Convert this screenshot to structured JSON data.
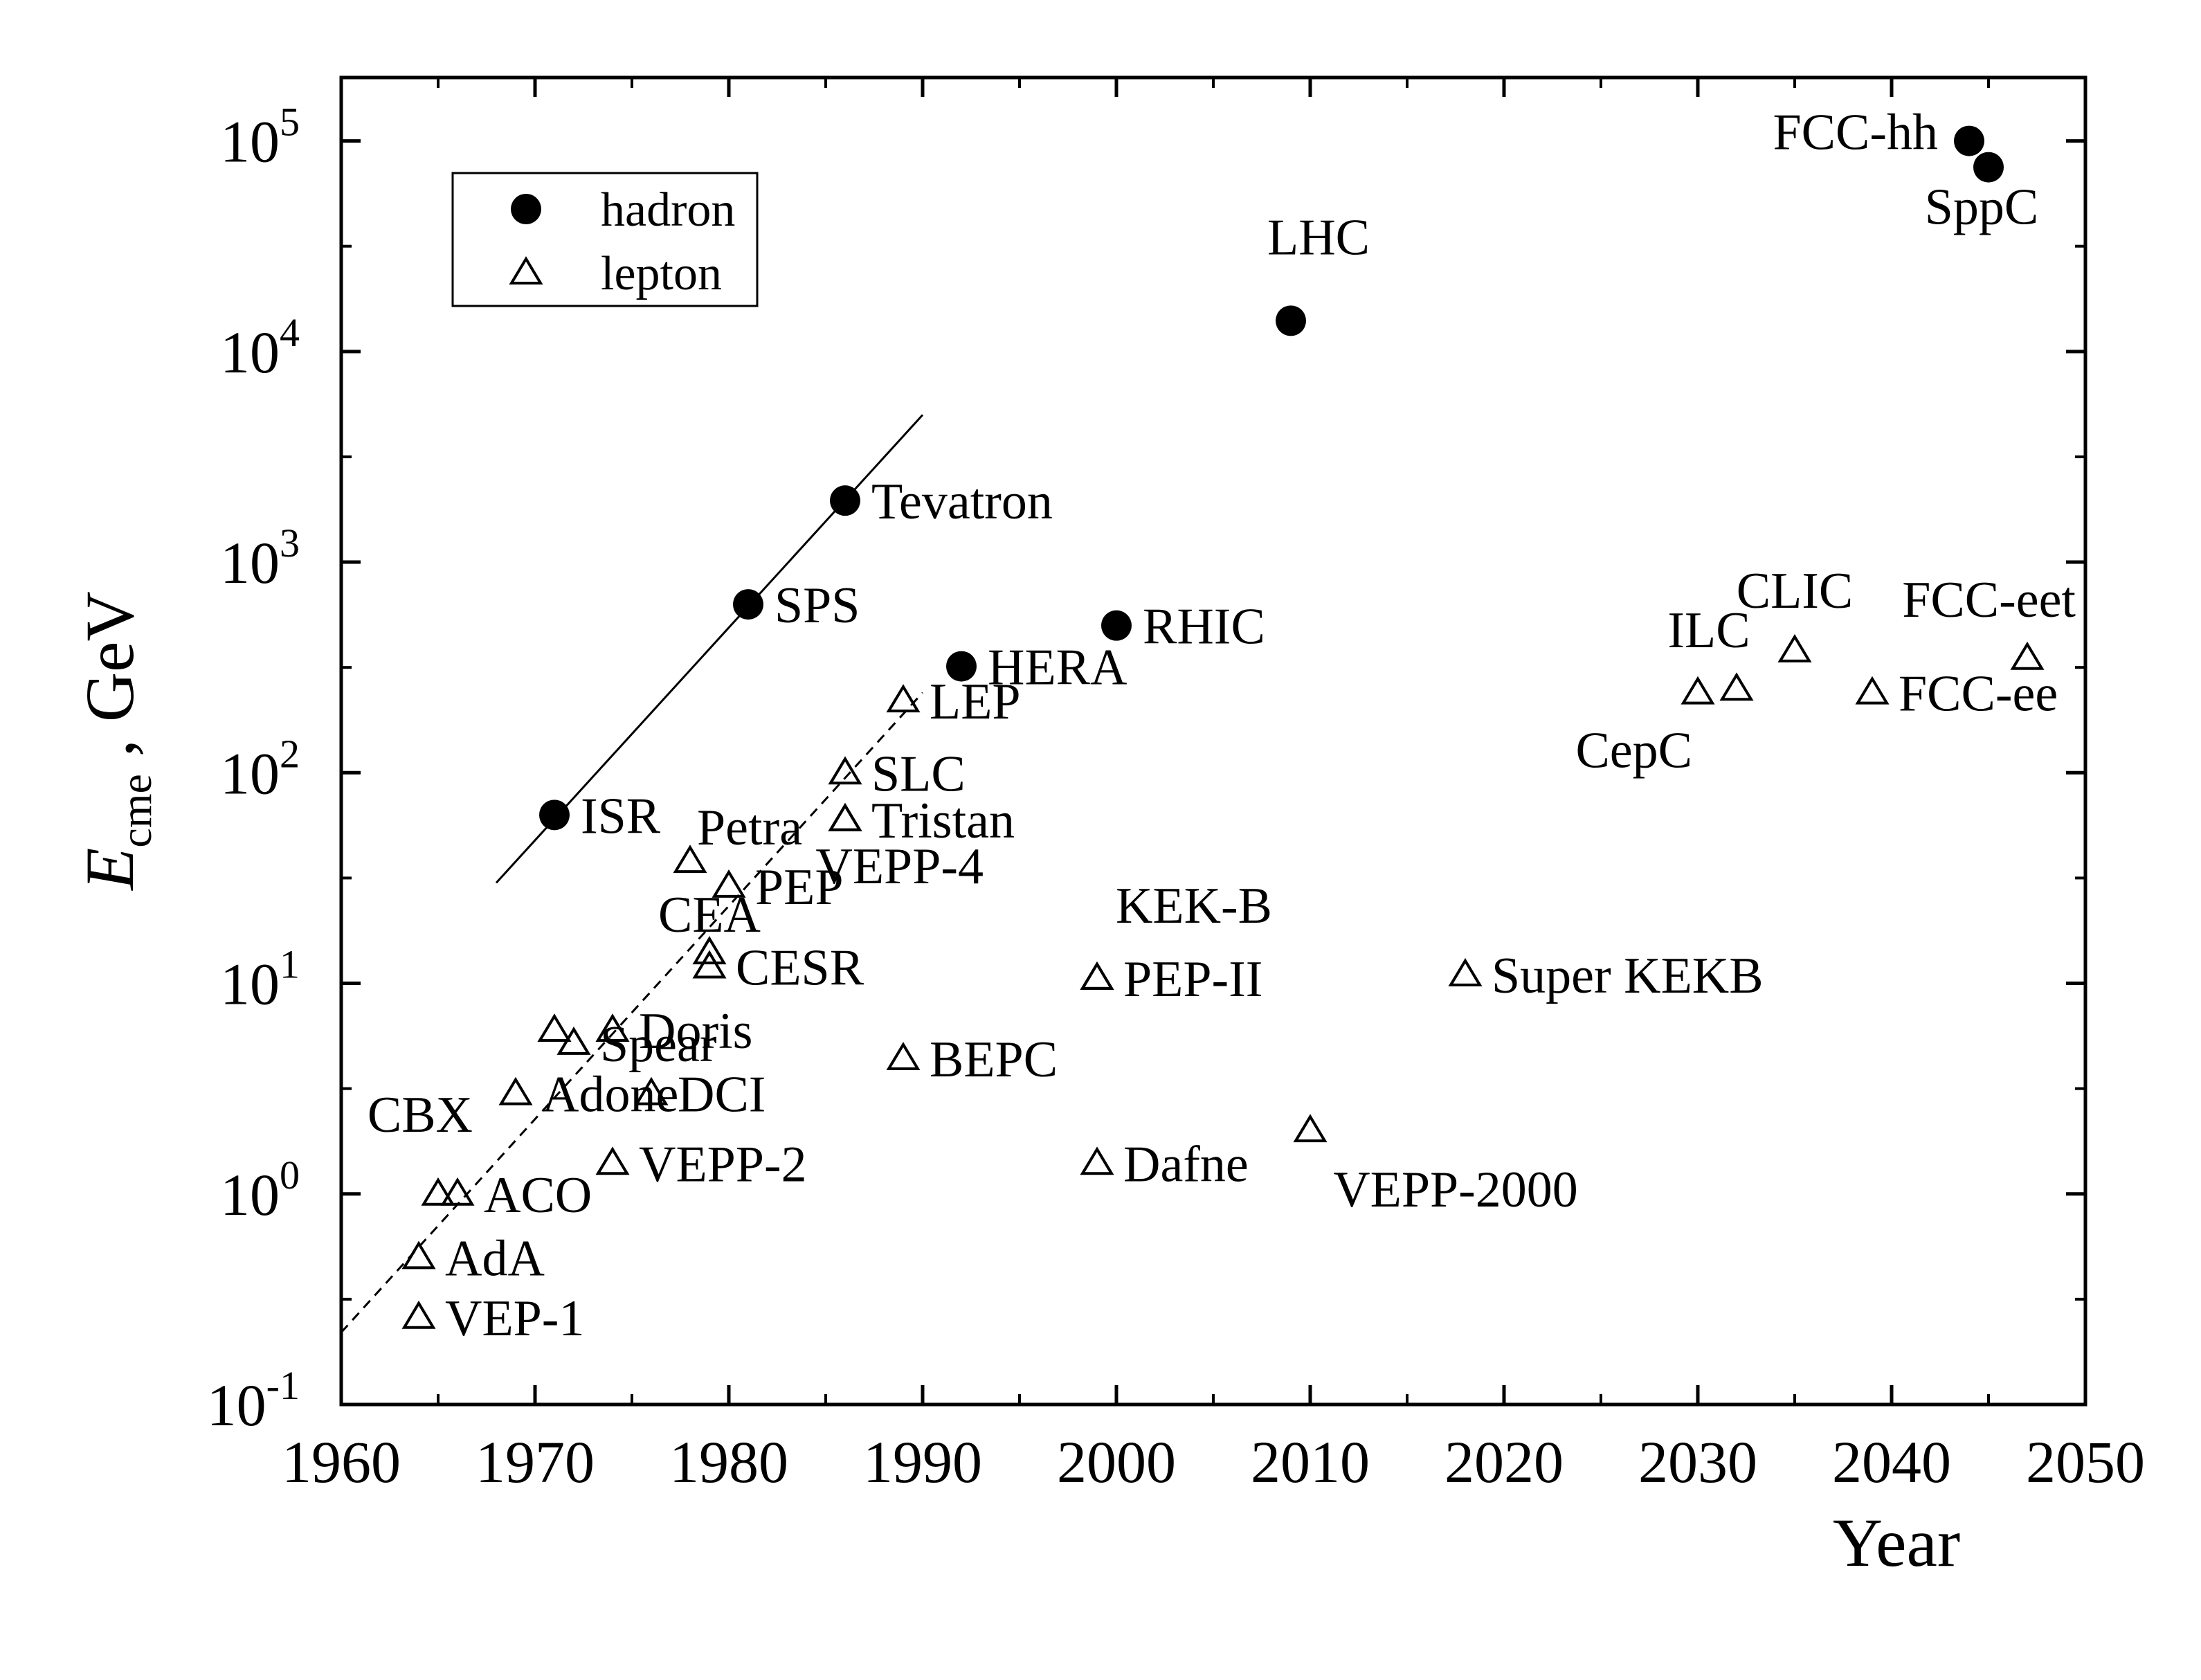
{
  "chart_data": {
    "type": "scatter",
    "x_scale": "linear",
    "y_scale": "log",
    "xlim": [
      1960,
      2050
    ],
    "ylim": [
      0.1,
      200000
    ],
    "x_ticks": [
      {
        "value": 1960,
        "label": "1960"
      },
      {
        "value": 1970,
        "label": "1970"
      },
      {
        "value": 1980,
        "label": "1980"
      },
      {
        "value": 1990,
        "label": "1990"
      },
      {
        "value": 2000,
        "label": "2000"
      },
      {
        "value": 2010,
        "label": "2010"
      },
      {
        "value": 2020,
        "label": "2020"
      },
      {
        "value": 2030,
        "label": "2030"
      },
      {
        "value": 2040,
        "label": "2040"
      },
      {
        "value": 2050,
        "label": "2050"
      }
    ],
    "y_ticks": [
      {
        "value": 0.1,
        "base": "10",
        "exp": "-1"
      },
      {
        "value": 1,
        "base": "10",
        "exp": "0"
      },
      {
        "value": 10,
        "base": "10",
        "exp": "1"
      },
      {
        "value": 100,
        "base": "10",
        "exp": "2"
      },
      {
        "value": 1000,
        "base": "10",
        "exp": "3"
      },
      {
        "value": 10000,
        "base": "10",
        "exp": "4"
      },
      {
        "value": 100000,
        "base": "10",
        "exp": "5"
      }
    ],
    "xlabel": "Year",
    "ylabel": {
      "main": "E",
      "sub": "cme",
      "unit": " , GeV"
    },
    "legend": {
      "position": "top-left",
      "entries": [
        {
          "marker": "filled-circle",
          "label": "hadron"
        },
        {
          "marker": "open-triangle",
          "label": "lepton"
        }
      ]
    },
    "series": [
      {
        "name": "hadron",
        "marker": "filled-circle",
        "points": [
          {
            "label": "ISR",
            "x": 1971,
            "y": 63,
            "anchor": "right"
          },
          {
            "label": "SPS",
            "x": 1981,
            "y": 630,
            "anchor": "right"
          },
          {
            "label": "Tevatron",
            "x": 1986,
            "y": 1960,
            "anchor": "right"
          },
          {
            "label": "HERA",
            "x": 1992,
            "y": 320,
            "anchor": "right"
          },
          {
            "label": "RHIC",
            "x": 2000,
            "y": 500,
            "anchor": "right"
          },
          {
            "label": "LHC",
            "x": 2009,
            "y": 14000,
            "anchor": "above"
          },
          {
            "label": "FCC-hh",
            "x": 2044,
            "y": 100000,
            "anchor": "left"
          },
          {
            "label": "SppC",
            "x": 2045,
            "y": 75000,
            "anchor": "below"
          }
        ]
      },
      {
        "name": "lepton",
        "marker": "open-triangle",
        "points": [
          {
            "label": "VEP-1",
            "x": 1964,
            "y": 0.26,
            "anchor": "right"
          },
          {
            "label": "AdA",
            "x": 1964,
            "y": 0.5,
            "anchor": "right"
          },
          {
            "label": "CBX",
            "x": 1965,
            "y": 1.0,
            "anchor": "above-left"
          },
          {
            "label": "ACO",
            "x": 1966,
            "y": 1.0,
            "anchor": "right"
          },
          {
            "label": "Adone",
            "x": 1969,
            "y": 3.0,
            "anchor": "right"
          },
          {
            "label": "Spear",
            "x": 1972,
            "y": 5.2,
            "anchor": "right"
          },
          {
            "label": "",
            "x": 1971,
            "y": 6.0,
            "anchor": "none"
          },
          {
            "label": "Doris",
            "x": 1974,
            "y": 6.0,
            "anchor": "right"
          },
          {
            "label": "DCI",
            "x": 1976,
            "y": 3.0,
            "anchor": "right"
          },
          {
            "label": "VEPP-2",
            "x": 1974,
            "y": 1.4,
            "anchor": "right"
          },
          {
            "label": "CEA",
            "x": 1979,
            "y": 14,
            "anchor": "above"
          },
          {
            "label": "CESR",
            "x": 1979,
            "y": 12,
            "anchor": "right"
          },
          {
            "label": "Petra",
            "x": 1978,
            "y": 38,
            "anchor": "above-right"
          },
          {
            "label": "PEP",
            "x": 1980,
            "y": 29,
            "anchor": "right"
          },
          {
            "label": "VEPP-4",
            "x": 1986,
            "y": 60,
            "anchor": "below-left"
          },
          {
            "label": "Tristan",
            "x": 1986,
            "y": 60,
            "anchor": "right"
          },
          {
            "label": "SLC",
            "x": 1986,
            "y": 100,
            "anchor": "right"
          },
          {
            "label": "LEP",
            "x": 1989,
            "y": 220,
            "anchor": "right"
          },
          {
            "label": "BEPC",
            "x": 1989,
            "y": 4.4,
            "anchor": "right"
          },
          {
            "label": "KEK-B",
            "x": 1999,
            "y": 10.6,
            "anchor": "above"
          },
          {
            "label": "PEP-II",
            "x": 1999,
            "y": 10.6,
            "anchor": "right"
          },
          {
            "label": "Dafne",
            "x": 1999,
            "y": 1.4,
            "anchor": "right"
          },
          {
            "label": "VEPP-2000",
            "x": 2010,
            "y": 2.0,
            "anchor": "below"
          },
          {
            "label": "Super KEKB",
            "x": 2018,
            "y": 11,
            "anchor": "right"
          },
          {
            "label": "CepC",
            "x": 2030,
            "y": 240,
            "anchor": "below-left"
          },
          {
            "label": "ILC",
            "x": 2032,
            "y": 250,
            "anchor": "above-left"
          },
          {
            "label": "CLIC",
            "x": 2035,
            "y": 380,
            "anchor": "above"
          },
          {
            "label": "FCC-ee",
            "x": 2039,
            "y": 240,
            "anchor": "right"
          },
          {
            "label": "FCC-eet",
            "x": 2047,
            "y": 350,
            "anchor": "above-left"
          }
        ]
      }
    ],
    "trend_lines": [
      {
        "name": "hadron trend",
        "style": "solid",
        "from": {
          "x": 1968,
          "y": 30
        },
        "to": {
          "x": 1990,
          "y": 5000
        }
      },
      {
        "name": "lepton trend",
        "style": "dashed",
        "from": {
          "x": 1960,
          "y": 0.22
        },
        "to": {
          "x": 1990,
          "y": 240
        }
      }
    ]
  }
}
